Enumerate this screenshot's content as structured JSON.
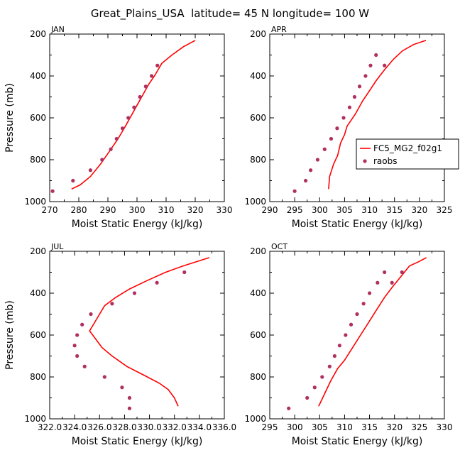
{
  "figure_title": "Great_Plains_USA  latitude= 45 N longitude= 100 W",
  "colors": {
    "model_line": "#ff0000",
    "obs_points": "#b03060"
  },
  "chart_data": [
    {
      "type": "line",
      "panel_label": "JAN",
      "xlabel": "Moist Static Energy (kJ/kg)",
      "ylabel": "Pressure (mb)",
      "xlim": [
        270,
        330
      ],
      "ylim": [
        1000,
        200
      ],
      "xticks": [
        270,
        280,
        290,
        300,
        310,
        320,
        330
      ],
      "xtick_labels": [
        "270",
        "280",
        "290",
        "300",
        "310",
        "320",
        "330"
      ],
      "yticks": [
        200,
        400,
        600,
        800,
        1000
      ],
      "ytick_labels": [
        "200",
        "400",
        "600",
        "800",
        "1000"
      ],
      "series": [
        {
          "kind": "line",
          "x": [
            277.5,
            280.5,
            284,
            287.5,
            290.5,
            293.5,
            296,
            298,
            300,
            302,
            304,
            306,
            308.5,
            312,
            316,
            320
          ],
          "y": [
            940,
            920,
            880,
            820,
            760,
            700,
            640,
            590,
            540,
            490,
            440,
            400,
            340,
            300,
            260,
            230
          ]
        },
        {
          "kind": "scatter",
          "x": [
            271,
            278,
            284,
            288,
            291,
            293,
            295,
            297,
            299,
            301,
            303,
            305,
            307
          ],
          "y": [
            950,
            900,
            850,
            800,
            750,
            700,
            650,
            600,
            550,
            500,
            450,
            400,
            350
          ]
        }
      ],
      "legend": null
    },
    {
      "type": "line",
      "panel_label": "APR",
      "xlabel": "Moist Static Energy (kJ/kg)",
      "ylabel": "",
      "xlim": [
        290,
        325
      ],
      "ylim": [
        1000,
        200
      ],
      "xticks": [
        290,
        295,
        300,
        305,
        310,
        315,
        320,
        325
      ],
      "xtick_labels": [
        "290",
        "295",
        "300",
        "305",
        "310",
        "315",
        "320",
        "325"
      ],
      "yticks": [
        200,
        400,
        600,
        800,
        1000
      ],
      "ytick_labels": [
        "200",
        "400",
        "600",
        "800",
        "1000"
      ],
      "series": [
        {
          "name": "FC5_MG2_f02g1",
          "kind": "line",
          "x": [
            301.8,
            302,
            302.8,
            303.6,
            304.2,
            305,
            305.5,
            307.2,
            308.6,
            310,
            311.4,
            313,
            314.8,
            316.6,
            318.8,
            321.3
          ],
          "y": [
            940,
            880,
            820,
            780,
            720,
            680,
            640,
            580,
            520,
            470,
            420,
            370,
            320,
            280,
            250,
            230
          ]
        },
        {
          "name": "raobs",
          "kind": "scatter",
          "x": [
            295,
            297.2,
            298.2,
            299.6,
            301,
            302.3,
            303.5,
            304.8,
            306,
            307,
            308,
            309.2,
            310.2,
            311.3,
            313
          ],
          "y": [
            950,
            900,
            850,
            800,
            750,
            700,
            650,
            600,
            550,
            500,
            450,
            400,
            350,
            300,
            350
          ]
        }
      ],
      "legend": {
        "entries": [
          "FC5_MG2_f02g1",
          "raobs"
        ]
      }
    },
    {
      "type": "line",
      "panel_label": "JUL",
      "xlabel": "Moist Static Energy (kJ/kg)",
      "ylabel": "Pressure (mb)",
      "xlim": [
        322.0,
        336.0
      ],
      "ylim": [
        1000,
        200
      ],
      "xticks": [
        322,
        324,
        326,
        328,
        330,
        332,
        334,
        336
      ],
      "xtick_labels": [
        "322.0",
        "324.0",
        "326.0",
        "328.0",
        "330.0",
        "332.0",
        "334.0",
        "336.0"
      ],
      "yticks": [
        200,
        400,
        600,
        800,
        1000
      ],
      "ytick_labels": [
        "200",
        "400",
        "600",
        "800",
        "1000"
      ],
      "series": [
        {
          "kind": "line",
          "x": [
            332.3,
            332,
            331.5,
            330.8,
            329.5,
            328.2,
            327,
            326.2,
            325.7,
            325.2,
            325.8,
            326.4,
            327.3,
            328.4,
            329.8,
            331.3,
            332.7,
            334.8
          ],
          "y": [
            940,
            900,
            860,
            830,
            790,
            750,
            700,
            660,
            620,
            580,
            520,
            460,
            420,
            380,
            340,
            300,
            270,
            230
          ]
        },
        {
          "kind": "scatter",
          "x": [
            328.4,
            328.4,
            327.8,
            326.4,
            324.8,
            324.2,
            324.0,
            324.2,
            324.6,
            325.3,
            327.0,
            328.8,
            330.6,
            332.8
          ],
          "y": [
            950,
            900,
            850,
            800,
            750,
            700,
            650,
            600,
            550,
            500,
            450,
            400,
            350,
            300
          ]
        }
      ],
      "legend": null
    },
    {
      "type": "line",
      "panel_label": "OCT",
      "xlabel": "Moist Static Energy (kJ/kg)",
      "ylabel": "",
      "xlim": [
        295,
        330
      ],
      "ylim": [
        1000,
        200
      ],
      "xticks": [
        295,
        300,
        305,
        310,
        315,
        320,
        325,
        330
      ],
      "xtick_labels": [
        "295",
        "300",
        "305",
        "310",
        "315",
        "320",
        "325",
        "330"
      ],
      "yticks": [
        200,
        400,
        600,
        800,
        1000
      ],
      "ytick_labels": [
        "200",
        "400",
        "600",
        "800",
        "1000"
      ],
      "series": [
        {
          "kind": "line",
          "x": [
            304.8,
            306,
            307.2,
            308.6,
            310,
            311.6,
            313.2,
            314.8,
            316.4,
            318,
            319.6,
            321.3,
            323,
            324.8,
            326.4
          ],
          "y": [
            940,
            880,
            820,
            760,
            720,
            660,
            600,
            540,
            480,
            420,
            370,
            320,
            270,
            250,
            230
          ]
        },
        {
          "kind": "scatter",
          "x": [
            298.8,
            302.5,
            304,
            305.5,
            307,
            308,
            309,
            310.2,
            311.3,
            312.5,
            313.8,
            315,
            316.6,
            318,
            319.5,
            321.5
          ],
          "y": [
            950,
            900,
            850,
            800,
            750,
            700,
            650,
            600,
            550,
            500,
            450,
            400,
            350,
            300,
            350,
            300
          ]
        }
      ],
      "legend": null
    }
  ]
}
